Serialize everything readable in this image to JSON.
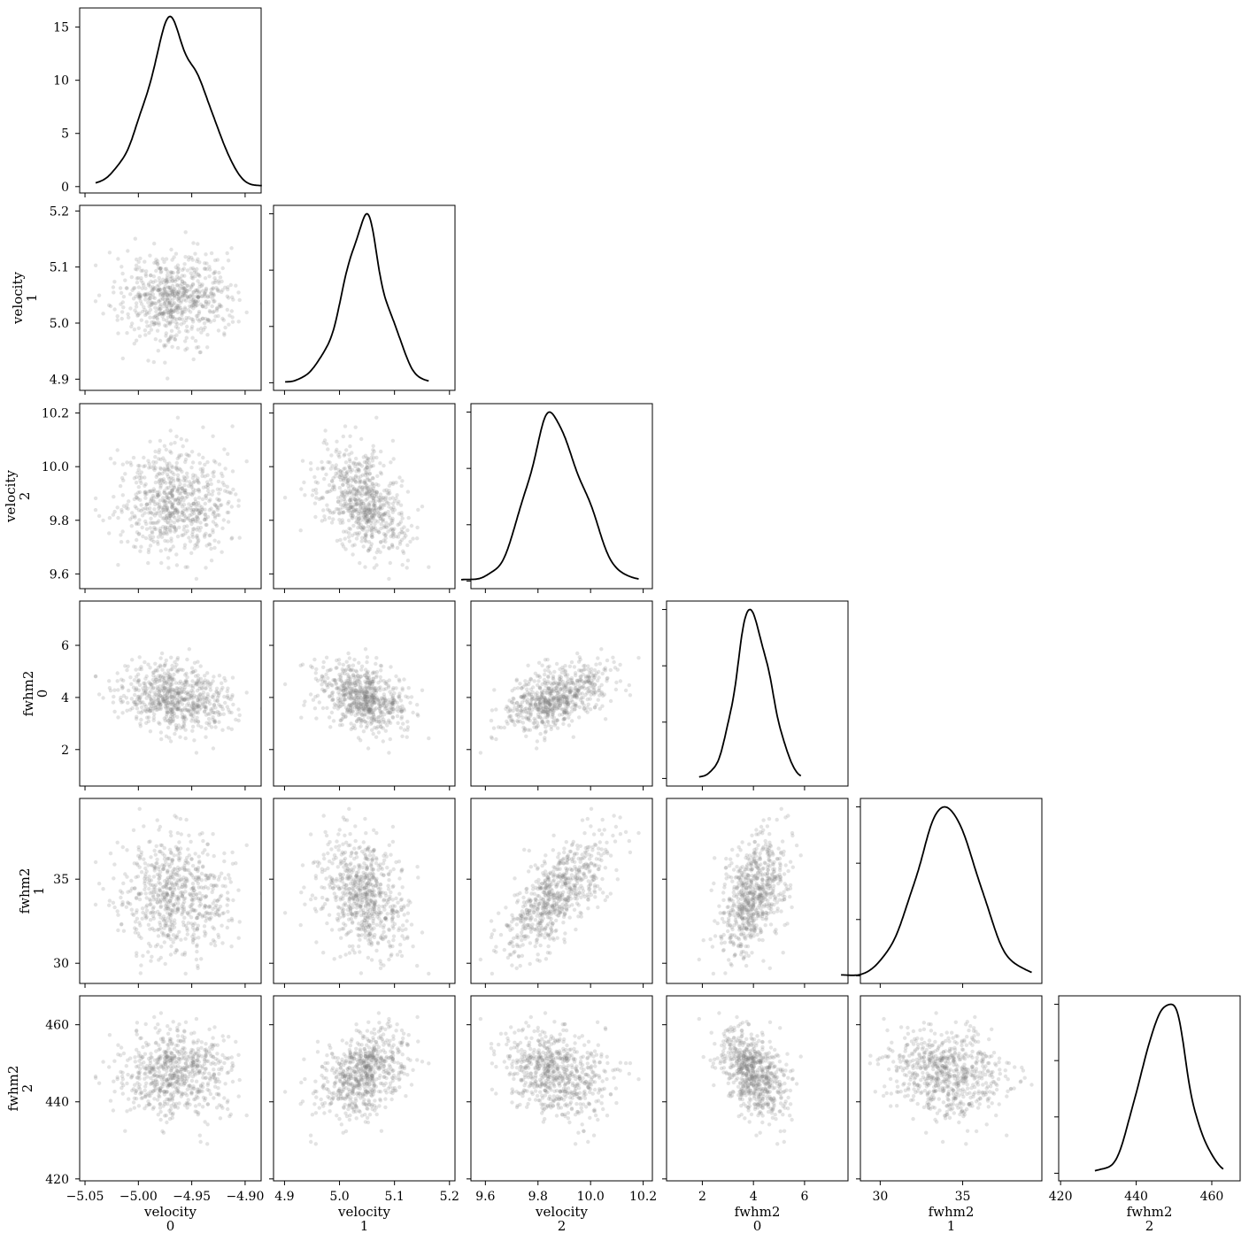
{
  "chart_data": {
    "type": "pair-plot",
    "variables": [
      {
        "name": "velocity",
        "index": "0",
        "range": [
          -5.055,
          -4.885
        ],
        "ticks": [
          -5.05,
          -5.0,
          -4.95,
          -4.9
        ],
        "tick_labels": [
          "−5.05",
          "−5.00",
          "−4.95",
          "−4.90"
        ],
        "mean": -4.966,
        "sd": 0.025
      },
      {
        "name": "velocity",
        "index": "1",
        "range": [
          4.88,
          5.21
        ],
        "ticks": [
          4.9,
          5.0,
          5.1,
          5.2
        ],
        "tick_labels": [
          "4.9",
          "5.0",
          "5.1",
          "5.2"
        ],
        "mean": 5.045,
        "sd": 0.04
      },
      {
        "name": "velocity",
        "index": "2",
        "range": [
          9.545,
          10.235
        ],
        "ticks": [
          9.6,
          9.8,
          10.0,
          10.2
        ],
        "tick_labels": [
          "9.6",
          "9.8",
          "10.0",
          "10.2"
        ],
        "mean": 9.87,
        "sd": 0.1
      },
      {
        "name": "fwhm2",
        "index": "0",
        "range": [
          0.6,
          7.7
        ],
        "ticks": [
          2,
          4,
          6
        ],
        "tick_labels": [
          "2",
          "4",
          "6"
        ],
        "mean": 4.0,
        "sd": 0.65
      },
      {
        "name": "fwhm2",
        "index": "1",
        "range": [
          28.8,
          39.8
        ],
        "ticks": [
          30,
          35
        ],
        "tick_labels": [
          "30",
          "35"
        ],
        "mean": 34.1,
        "sd": 1.7
      },
      {
        "name": "fwhm2",
        "index": "2",
        "range": [
          419.5,
          467.5
        ],
        "ticks": [
          420,
          440,
          460
        ],
        "tick_labels": [
          "420",
          "440",
          "460"
        ],
        "mean": 447.5,
        "sd": 5.8
      }
    ],
    "density_peaks": [
      16.0,
      null,
      null,
      null,
      null,
      null
    ],
    "diagonal_yaxis": {
      "range": [
        -0.6,
        16.8
      ],
      "ticks": [
        0,
        5,
        10,
        15
      ],
      "tick_labels": [
        "0",
        "5",
        "10",
        "15"
      ]
    },
    "correlations": [
      [
        1,
        0.0,
        0.0,
        -0.2,
        0.0,
        0.0
      ],
      [
        0.0,
        1,
        -0.35,
        -0.3,
        -0.25,
        0.35
      ],
      [
        0.0,
        -0.35,
        1,
        0.5,
        0.7,
        -0.25
      ],
      [
        -0.2,
        -0.3,
        0.5,
        1,
        0.4,
        -0.4
      ],
      [
        0.0,
        -0.25,
        0.7,
        0.4,
        1,
        -0.1
      ],
      [
        0.0,
        0.35,
        -0.25,
        -0.4,
        -0.1,
        1
      ]
    ],
    "sample_count": 700,
    "kde_color": "#000000",
    "point_color": "#808080"
  }
}
